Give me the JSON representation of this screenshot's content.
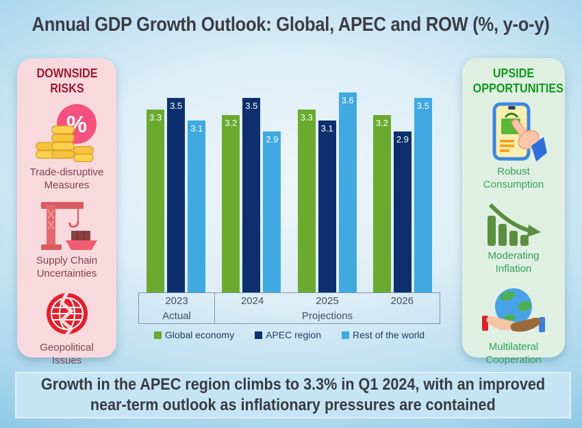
{
  "title": "Annual GDP Growth Outlook: Global, APEC and ROW (%, y-o-y)",
  "left_panel": {
    "heading": "DOWNSIDE RISKS",
    "items": [
      {
        "icon": "percent-coins-icon",
        "label": "Trade-disruptive Measures"
      },
      {
        "icon": "crane-ship-icon",
        "label": "Supply Chain Uncertainties"
      },
      {
        "icon": "cracked-globe-icon",
        "label": "Geopolitical Issues"
      }
    ]
  },
  "right_panel": {
    "heading": "UPSIDE OPPORTUNITIES",
    "items": [
      {
        "icon": "phone-shopping-icon",
        "label": "Robust Consumption"
      },
      {
        "icon": "declining-bars-icon",
        "label": "Moderating Inflation"
      },
      {
        "icon": "globe-hands-icon",
        "label": "Multilateral Cooperation"
      }
    ]
  },
  "chart_data": {
    "type": "bar",
    "title": "Annual GDP Growth Outlook: Global, APEC and ROW (%, y-o-y)",
    "categories": [
      "2023",
      "2024",
      "2025",
      "2026"
    ],
    "series": [
      {
        "name": "Global economy",
        "color": "#6aaa2f",
        "values": [
          3.3,
          3.2,
          3.3,
          3.2
        ]
      },
      {
        "name": "APEC region",
        "color": "#0d2f6d",
        "values": [
          3.5,
          3.5,
          3.1,
          2.9
        ]
      },
      {
        "name": "Rest of the world",
        "color": "#3fa9e0",
        "values": [
          3.1,
          2.9,
          3.6,
          3.5
        ]
      }
    ],
    "period_labels": {
      "actual": "Actual",
      "projections": "Projections"
    },
    "ylim": [
      0,
      3.7
    ],
    "grid": false,
    "legend_position": "bottom",
    "value_labels_shown": true
  },
  "banner": {
    "line1": "Growth in the APEC region climbs to 3.3% in Q1 2024, with an improved",
    "line2": "near-term outlook as inflationary pressures are contained"
  },
  "colors": {
    "background_edge": "#4fabdc",
    "background_center": "#eef5f9",
    "title_text": "#3c3c45",
    "left_panel_bg": "#f8d9de",
    "left_heading": "#9c1b2e",
    "left_label": "#7d4450",
    "right_panel_bg": "#dff0e3",
    "right_heading": "#12991c",
    "right_label": "#35a156",
    "axis_text": "#42505c",
    "legend_text": "#21415f",
    "banner_bg": "#c6e5f4",
    "banner_text": "#3a3a42"
  }
}
